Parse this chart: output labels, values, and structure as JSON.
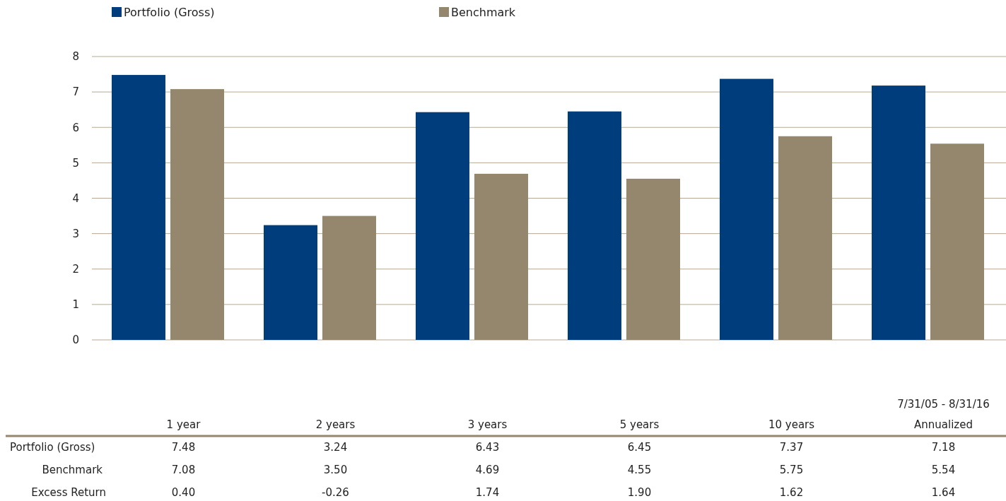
{
  "chart_data": {
    "type": "bar",
    "categories": [
      "1 year",
      "2 years",
      "3 years",
      "5 years",
      "10 years",
      "Annualized"
    ],
    "series": [
      {
        "name": "Portfolio (Gross)",
        "color": "#003d7c",
        "values": [
          7.48,
          3.24,
          6.43,
          6.45,
          7.37,
          7.18
        ],
        "value_labels": [
          "7.48",
          "3.24",
          "6.43",
          "6.45",
          "7.37",
          "7.18"
        ]
      },
      {
        "name": "Benchmark",
        "color": "#95866e",
        "values": [
          7.08,
          3.5,
          4.69,
          4.55,
          5.75,
          5.54
        ],
        "value_labels": [
          "7.08",
          "3.50",
          "4.69",
          "4.55",
          "5.75",
          "5.54"
        ]
      }
    ],
    "ylim": [
      0,
      8
    ],
    "yticks": [
      0,
      1,
      2,
      3,
      4,
      5,
      6,
      7,
      8
    ],
    "grid": "y",
    "legend": "top left",
    "annotations": [
      "7/31/05 - 8/31/16",
      "Excess Return",
      "0.40",
      "-0.26",
      "1.74",
      "1.90",
      "1.62",
      "1.64"
    ]
  }
}
